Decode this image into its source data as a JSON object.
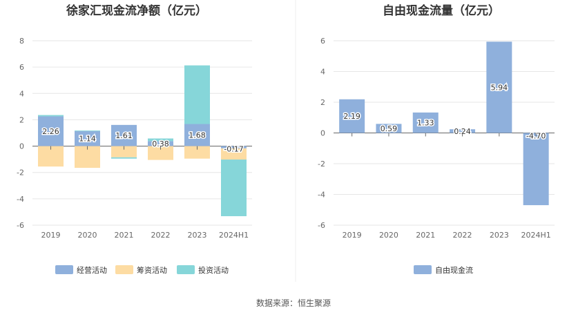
{
  "colors": {
    "operating": "#8fb0dc",
    "financing": "#fddca3",
    "investing": "#86d6d9",
    "free_cash_flow": "#8fb0dc",
    "grid": "#e6e6e6",
    "axis": "#666666"
  },
  "chart_data": [
    {
      "type": "bar",
      "stacked": true,
      "title": "徐家汇现金流净额（亿元）",
      "categories": [
        "2019",
        "2020",
        "2021",
        "2022",
        "2023",
        "2024H1"
      ],
      "ylim": [
        -6,
        8
      ],
      "yticks": [
        "8",
        "6",
        "4",
        "2",
        "0",
        "-2",
        "-4",
        "-6"
      ],
      "grid": true,
      "legend_position": "bottom",
      "series": [
        {
          "name": "经营活动",
          "color": "#8fb0dc",
          "values": [
            2.26,
            1.14,
            1.61,
            0.38,
            1.68,
            -0.17
          ]
        },
        {
          "name": "筹资活动",
          "color": "#fddca3",
          "values": [
            -1.55,
            -1.65,
            -0.85,
            -1.05,
            -0.95,
            -0.85
          ]
        },
        {
          "name": "投资活动",
          "color": "#86d6d9",
          "values": [
            0.1,
            0.05,
            -0.1,
            0.2,
            4.45,
            -4.3
          ]
        }
      ],
      "data_labels": [
        "2.26",
        "1.14",
        "1.61",
        "0.38",
        "1.68",
        "-0.17"
      ]
    },
    {
      "type": "bar",
      "title": "自由现金流量（亿元）",
      "categories": [
        "2019",
        "2020",
        "2021",
        "2022",
        "2023",
        "2024H1"
      ],
      "ylim": [
        -6,
        6
      ],
      "yticks": [
        "6",
        "4",
        "2",
        "0",
        "-2",
        "-4",
        "-6"
      ],
      "grid": true,
      "legend_position": "bottom",
      "series": [
        {
          "name": "自由现金流",
          "color": "#8fb0dc",
          "values": [
            2.19,
            0.59,
            1.33,
            0.24,
            5.94,
            -4.7
          ]
        }
      ],
      "data_labels": [
        "2.19",
        "0.59",
        "1.33",
        "0.24",
        "5.94",
        "-4.70"
      ]
    }
  ],
  "footer": {
    "source": "数据来源：恒生聚源"
  }
}
